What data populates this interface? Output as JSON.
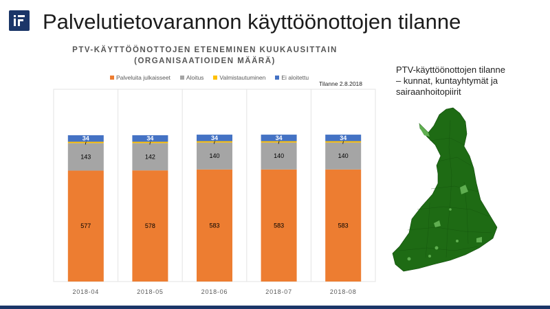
{
  "slide": {
    "title": "Palvelutietovarannon käyttöönottojen tilanne"
  },
  "chart_data": {
    "type": "bar",
    "stacked": true,
    "title_lines": [
      "PTV-KÄYTTÖÖNOTTOJEN ETENEMINEN KUUKAUSITTAIN",
      "(ORGANISAATIOIDEN MÄÄRÄ)"
    ],
    "status_note": "Tilanne 2.8.2018",
    "categories": [
      "2018-04",
      "2018-05",
      "2018-06",
      "2018-07",
      "2018-08"
    ],
    "series": [
      {
        "name": "Palveluita julkaisseet",
        "color": "#ed7d31",
        "values": [
          577,
          578,
          583,
          583,
          583
        ]
      },
      {
        "name": "Aloitus",
        "color": "#a5a5a5",
        "values": [
          143,
          142,
          140,
          140,
          140
        ]
      },
      {
        "name": "Valmistautuminen",
        "color": "#ffc000",
        "values": [
          7,
          7,
          7,
          7,
          7
        ]
      },
      {
        "name": "Ei aloitettu",
        "color": "#4472c4",
        "values": [
          34,
          34,
          34,
          34,
          34
        ]
      }
    ],
    "ylim": [
      0,
      1000
    ],
    "legend_position": "top",
    "grid": false
  },
  "map": {
    "caption_lines": [
      "PTV-käyttöönottojen tilanne",
      "– kunnat, kuntayhtymät ja",
      "sairaanhoitopiirit"
    ],
    "fill_color": "#1e6b14",
    "highlight_color": "#5fae50"
  },
  "colors": {
    "brand": "#1b3668"
  }
}
